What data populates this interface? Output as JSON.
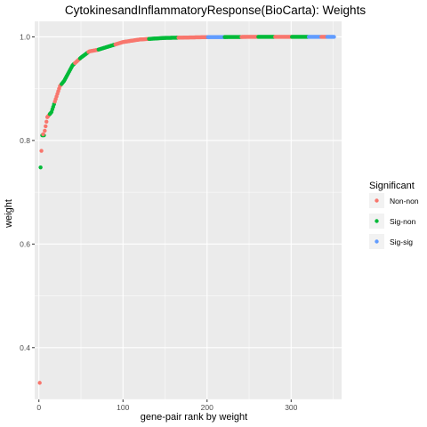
{
  "chart_data": {
    "type": "scatter",
    "title": "CytokinesandInflammatoryResponse(BioCarta): Weights",
    "xlabel": "gene-pair rank by weight",
    "ylabel": "weight",
    "xlim": [
      -5,
      360
    ],
    "ylim": [
      0.3,
      1.03
    ],
    "x_ticks": [
      0,
      100,
      200,
      300
    ],
    "y_ticks": [
      0.4,
      0.6,
      0.8,
      1.0
    ],
    "x_tick_labels": [
      "0",
      "100",
      "200",
      "300"
    ],
    "y_tick_labels": [
      "0.4",
      "0.6",
      "0.8",
      "1.0"
    ],
    "grid": true,
    "legend": {
      "title": "Significant",
      "placement": "right",
      "entries": [
        {
          "name": "Non-non",
          "color": "#F8766D"
        },
        {
          "name": "Sig-non",
          "color": "#00BA38"
        },
        {
          "name": "Sig-sig",
          "color": "#619CFF"
        }
      ]
    },
    "curve": {
      "knots_x": [
        4,
        6,
        10,
        15,
        20,
        25,
        30,
        35,
        40,
        50,
        60,
        70,
        80,
        90,
        100,
        120,
        150,
        200,
        250,
        300,
        351
      ],
      "knots_y": [
        0.81,
        0.81,
        0.845,
        0.855,
        0.88,
        0.905,
        0.915,
        0.93,
        0.945,
        0.96,
        0.972,
        0.975,
        0.98,
        0.985,
        0.99,
        0.995,
        0.998,
        0.9995,
        1.0,
        1.0,
        1.0
      ],
      "color_runs": [
        [
          5,
          6,
          "Sig-non"
        ],
        [
          7,
          12,
          "Non-non"
        ],
        [
          13,
          18,
          "Sig-non"
        ],
        [
          19,
          26,
          "Non-non"
        ],
        [
          27,
          34,
          "Sig-non"
        ],
        [
          35,
          42,
          "Sig-non"
        ],
        [
          43,
          48,
          "Non-non"
        ],
        [
          49,
          58,
          "Sig-non"
        ],
        [
          59,
          70,
          "Non-non"
        ],
        [
          71,
          90,
          "Sig-non"
        ],
        [
          91,
          130,
          "Non-non"
        ],
        [
          131,
          165,
          "Sig-non"
        ],
        [
          166,
          200,
          "Non-non"
        ],
        [
          201,
          220,
          "Sig-sig"
        ],
        [
          221,
          240,
          "Sig-non"
        ],
        [
          241,
          260,
          "Non-non"
        ],
        [
          261,
          280,
          "Sig-non"
        ],
        [
          281,
          300,
          "Non-non"
        ],
        [
          301,
          320,
          "Sig-non"
        ],
        [
          321,
          335,
          "Sig-sig"
        ],
        [
          336,
          342,
          "Non-non"
        ],
        [
          343,
          351,
          "Sig-sig"
        ]
      ]
    },
    "points": [
      {
        "x": 1,
        "y": 0.332,
        "group": "Non-non"
      },
      {
        "x": 2,
        "y": 0.748,
        "group": "Sig-non"
      },
      {
        "x": 3,
        "y": 0.78,
        "group": "Non-non"
      },
      {
        "x": 4,
        "y": 0.81,
        "group": "Sig-non"
      },
      {
        "x": 5,
        "y": 0.812,
        "group": "Non-non"
      }
    ]
  }
}
